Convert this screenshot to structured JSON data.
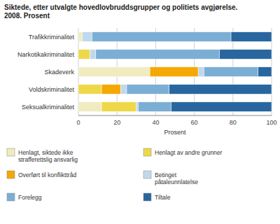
{
  "chart_data": {
    "type": "bar",
    "orientation": "horizontal",
    "stacked": true,
    "title": "Siktede, etter utvalgte hovedlovbruddsgrupper og politiets avgjørelse.\n2008. Prosent",
    "categories": [
      "Trafikkriminalitet",
      "Narkotikakriminalitet",
      "Skadeverk",
      "Voldskriminalitet",
      "Seksualkriminalitet"
    ],
    "xlabel": "Prosent",
    "xlim": [
      0,
      100
    ],
    "xticks": [
      0,
      20,
      40,
      60,
      80,
      100
    ],
    "grid": true,
    "legend": "bottom",
    "series": [
      {
        "name": "Henlagt, siktede ikke\nstrafferettslig ansvarlig",
        "color": "#F0ECC0",
        "values": [
          2,
          0,
          37,
          0,
          12
        ]
      },
      {
        "name": "Henlagt av andre grunner",
        "color": "#EDD84A",
        "values": [
          0,
          6,
          0,
          12,
          18
        ]
      },
      {
        "name": "Overført til konflikttråd",
        "color": "#F5A800",
        "values": [
          0,
          0,
          25,
          10,
          0
        ]
      },
      {
        "name": "Betinget\npåtaleunnlatelse",
        "color": "#C0D8EE",
        "values": [
          5,
          3,
          3,
          3,
          1
        ]
      },
      {
        "name": "Forelegg",
        "color": "#7BAED4",
        "values": [
          72,
          64,
          28,
          22,
          17
        ]
      },
      {
        "name": "Tiltale",
        "color": "#2866A0",
        "values": [
          21,
          27,
          7,
          53,
          52
        ]
      }
    ]
  }
}
